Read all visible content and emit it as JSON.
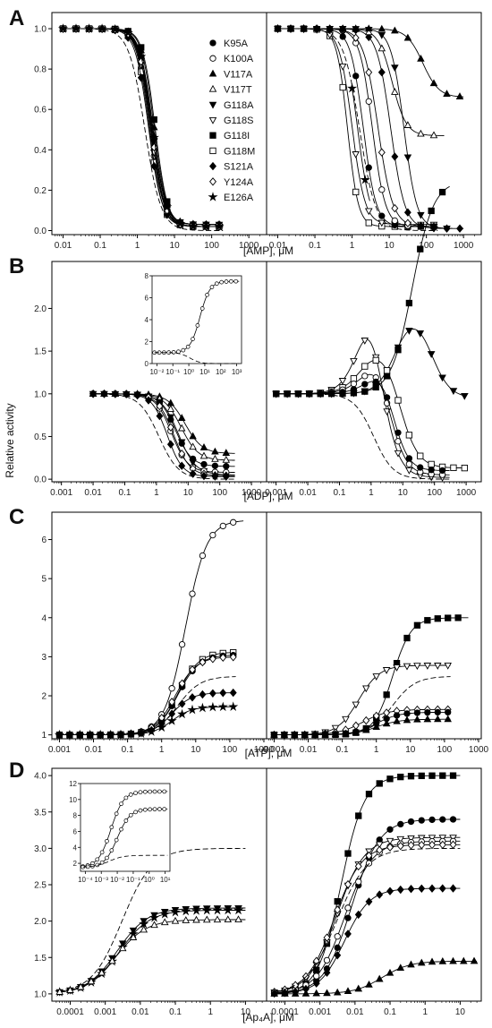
{
  "figure": {
    "ylabel": "Relative activity",
    "panel_letters": [
      "A",
      "B",
      "C",
      "D"
    ],
    "legend": [
      {
        "name": "K95A",
        "marker": "circle-filled"
      },
      {
        "name": "K100A",
        "marker": "circle-open"
      },
      {
        "name": "V117A",
        "marker": "triangle-up-filled"
      },
      {
        "name": "V117T",
        "marker": "triangle-up-open"
      },
      {
        "name": "G118A",
        "marker": "triangle-down-filled"
      },
      {
        "name": "G118S",
        "marker": "triangle-down-open"
      },
      {
        "name": "G118I",
        "marker": "square-filled"
      },
      {
        "name": "G118M",
        "marker": "square-open"
      },
      {
        "name": "S121A",
        "marker": "diamond-filled"
      },
      {
        "name": "Y124A",
        "marker": "diamond-open"
      },
      {
        "name": "E126A",
        "marker": "star"
      }
    ]
  },
  "chart_data": [
    {
      "type": "line",
      "panel": "A",
      "xlabel": "[AMP], μM",
      "xscale": "log",
      "xlim": [
        0.005,
        3000
      ],
      "ylim": [
        -0.02,
        1.08
      ],
      "xticks": [
        "0.01",
        "0.1",
        "1",
        "10",
        "100",
        "1000"
      ],
      "yticks": [
        "0.0",
        "0.2",
        "0.4",
        "0.6",
        "0.8",
        "1.0"
      ],
      "left": {
        "xmax": 200,
        "series": [
          {
            "name": "K95A",
            "marker": "circle-filled",
            "ec50": 2.4,
            "hill": 2.5,
            "bottom": 0.02
          },
          {
            "name": "K100A",
            "marker": "circle-open",
            "ec50": 2.2,
            "hill": 2.5,
            "bottom": 0.03
          },
          {
            "name": "V117A",
            "marker": "triangle-up-filled",
            "ec50": 2.8,
            "hill": 2.6,
            "bottom": 0.03
          },
          {
            "name": "V117T",
            "marker": "triangle-up-open",
            "ec50": 2.6,
            "hill": 2.5,
            "bottom": 0.03
          },
          {
            "name": "G118A",
            "marker": "triangle-down-filled",
            "ec50": 2.5,
            "hill": 2.5,
            "bottom": 0.03
          },
          {
            "name": "G118S",
            "marker": "triangle-down-open",
            "ec50": 2.3,
            "hill": 2.5,
            "bottom": 0.02
          },
          {
            "name": "G118I",
            "marker": "square-filled",
            "ec50": 3.0,
            "hill": 2.6,
            "bottom": 0.02
          },
          {
            "name": "G118M",
            "marker": "square-open",
            "ec50": 2.1,
            "hill": 2.5,
            "bottom": 0.02
          },
          {
            "name": "S121A",
            "marker": "diamond-filled",
            "ec50": 2.0,
            "hill": 2.4,
            "bottom": 0.02
          },
          {
            "name": "Y124A",
            "marker": "diamond-open",
            "ec50": 2.4,
            "hill": 2.5,
            "bottom": 0.02
          },
          {
            "name": "E126A",
            "marker": "star",
            "ec50": 2.6,
            "hill": 2.5,
            "bottom": 0.02
          },
          {
            "name": "",
            "marker": "none",
            "ec50": 1.6,
            "hill": 2.0,
            "bottom": 0.0,
            "dashed": true
          }
        ]
      },
      "right": {
        "xmax": 1000,
        "series": [
          {
            "name": "G118M",
            "marker": "square-open",
            "ec50": 0.75,
            "hill": 3,
            "bottom": 0.02,
            "xmax": 200
          },
          {
            "name": "G118S",
            "marker": "triangle-down-open",
            "ec50": 1.0,
            "hill": 2.5,
            "bottom": 0.03,
            "xmax": 200
          },
          {
            "name": "",
            "marker": "none",
            "ec50": 1.6,
            "hill": 2.0,
            "bottom": 0.0,
            "dashed": true,
            "xmax": 200
          },
          {
            "name": "K95A",
            "marker": "circle-filled",
            "ec50": 2.0,
            "hill": 2.5,
            "bottom": 0.02,
            "xmax": 200
          },
          {
            "name": "K100A",
            "marker": "circle-open",
            "ec50": 3.5,
            "hill": 2.5,
            "bottom": 0.02,
            "xmax": 200
          },
          {
            "name": "Y124A",
            "marker": "diamond-open",
            "ec50": 5.0,
            "hill": 2.2,
            "bottom": 0.02,
            "xmax": 200
          },
          {
            "name": "S121A",
            "marker": "diamond-filled",
            "ec50": 11,
            "hill": 2.3,
            "bottom": 0.01,
            "xmax": 1000
          },
          {
            "name": "G118A",
            "marker": "triangle-down-filled",
            "ec50": 25,
            "hill": 2.5,
            "bottom": 0.01,
            "xmax": 500
          },
          {
            "name": "V117T",
            "marker": "triangle-up-open",
            "ec50": 12,
            "hill": 2.3,
            "bottom": 0.47,
            "xmax": 300
          },
          {
            "name": "V117A",
            "marker": "triangle-up-filled",
            "ec50": 80,
            "hill": 2.0,
            "bottom": 0.66,
            "xmax": 1000
          },
          {
            "name": "E126A",
            "marker": "star",
            "ec50": 1.4,
            "hill": 2.5,
            "bottom": 0.02,
            "xmin": 1,
            "xmax": 3
          }
        ]
      }
    },
    {
      "type": "line",
      "panel": "B",
      "xlabel": "[ADP], μM",
      "xscale": "log",
      "xlim": [
        0.0005,
        3000
      ],
      "ylim": [
        -0.03,
        2.55
      ],
      "xticks": [
        "0.001",
        "0.01",
        "0.1",
        "1",
        "10",
        "100",
        "1000"
      ],
      "yticks": [
        "0.0",
        "0.5",
        "1.0",
        "1.5",
        "2.0"
      ],
      "left": {
        "xmin": 0.01,
        "xmax": 300,
        "series": [
          {
            "name": "V117A",
            "marker": "triangle-up-filled",
            "ec50": 8,
            "hill": 1.6,
            "bottom": 0.3
          },
          {
            "name": "V117T",
            "marker": "triangle-up-open",
            "ec50": 6,
            "hill": 1.6,
            "bottom": 0.22
          },
          {
            "name": "K95A",
            "marker": "circle-filled",
            "ec50": 4,
            "hill": 1.7,
            "bottom": 0.15
          },
          {
            "name": "G118A",
            "marker": "triangle-down-filled",
            "ec50": 5,
            "hill": 1.6,
            "bottom": 0.05
          },
          {
            "name": "K100A",
            "marker": "circle-open",
            "ec50": 3,
            "hill": 1.7,
            "bottom": 0.08
          },
          {
            "name": "Y124A",
            "marker": "diamond-open",
            "ec50": 3.5,
            "hill": 1.7,
            "bottom": 0.04
          },
          {
            "name": "S121A",
            "marker": "diamond-filled",
            "ec50": 2.2,
            "hill": 1.8,
            "bottom": 0.03
          },
          {
            "name": "",
            "marker": "none",
            "ec50": 1.2,
            "hill": 1.4,
            "bottom": 0.0,
            "dashed": true
          }
        ]
      },
      "right": {
        "xmin": 0.001,
        "xmax": 1000,
        "series": [
          {
            "name": "G118I",
            "marker": "square-filled",
            "bell": {
              "a1": 2.5,
              "k1": 20,
              "n1": 1.3,
              "k2": 1000000000,
              "n2": 1
            },
            "xmax": 300
          },
          {
            "name": "G118A",
            "marker": "triangle-down-filled",
            "bell": {
              "a1": 1.0,
              "k1": 6,
              "n1": 1.5,
              "k2": 80,
              "n2": 1.5,
              "b": 0.95
            },
            "xmax": 1000
          },
          {
            "name": "G118S",
            "marker": "triangle-down-open",
            "bell": {
              "a1": 1.5,
              "k1": 0.5,
              "n1": 1.5,
              "k2": 2,
              "n2": 1.6,
              "b": 0.02
            },
            "xmax": 300
          },
          {
            "name": "G118M",
            "marker": "square-open",
            "bell": {
              "a1": 0.6,
              "k1": 0.5,
              "n1": 1.4,
              "k2": 8,
              "n2": 1.5,
              "b": 0.13
            },
            "xmax": 1000
          },
          {
            "name": "K100A",
            "marker": "circle-open",
            "bell": {
              "a1": 0.5,
              "k1": 0.6,
              "n1": 1.4,
              "k2": 4,
              "n2": 1.7,
              "b": 0.05
            },
            "xmax": 300
          },
          {
            "name": "K95A",
            "marker": "circle-filled",
            "bell": {
              "a1": 0.4,
              "k1": 1.0,
              "n1": 1.4,
              "k2": 5,
              "n2": 1.8,
              "b": 0.1
            },
            "xmax": 300
          },
          {
            "name": "",
            "marker": "none",
            "ec50": 1.2,
            "hill": 1.4,
            "bottom": 0.0,
            "dashed": true,
            "xmax": 300
          }
        ]
      },
      "inset": {
        "xticks": [
          "10⁻²",
          "10⁻¹",
          "10⁰",
          "10¹",
          "10²",
          "10³"
        ],
        "yticks": [
          "0",
          "2",
          "4",
          "6",
          "8"
        ],
        "xlim": [
          0.005,
          2000
        ],
        "ylim": [
          0,
          8
        ]
      }
    },
    {
      "type": "line",
      "panel": "C",
      "xlabel": "[ATP], μM",
      "xscale": "log",
      "xlim": [
        0.0006,
        1200
      ],
      "ylim": [
        0.9,
        6.7
      ],
      "xticks": [
        "0.001",
        "0.01",
        "0.1",
        "1",
        "10",
        "100",
        "1000"
      ],
      "yticks": [
        "1",
        "2",
        "3",
        "4",
        "5",
        "6"
      ],
      "left": {
        "xmin": 0.001,
        "xmax": 250,
        "series": [
          {
            "name": "K100A",
            "marker": "circle-open",
            "top": 6.5,
            "ec50": 5,
            "hill": 1.4
          },
          {
            "name": "G118M",
            "marker": "square-open",
            "top": 3.12,
            "ec50": 3,
            "hill": 1.4,
            "xmax": 150
          },
          {
            "name": "K95A",
            "marker": "circle-filled",
            "top": 3.05,
            "ec50": 3,
            "hill": 1.4,
            "xmax": 150
          },
          {
            "name": "Y124A",
            "marker": "diamond-open",
            "top": 3.0,
            "ec50": 2.5,
            "hill": 1.4,
            "xmax": 150
          },
          {
            "name": "",
            "marker": "none",
            "top": 2.5,
            "ec50": 3,
            "hill": 1.3,
            "dashed": true,
            "xmax": 150
          },
          {
            "name": "S121A",
            "marker": "diamond-filled",
            "top": 2.08,
            "ec50": 2,
            "hill": 1.5,
            "xmax": 150
          },
          {
            "name": "E126A",
            "marker": "star",
            "top": 1.72,
            "ec50": 2,
            "hill": 1.5,
            "xmax": 150
          }
        ]
      },
      "right": {
        "xmin": 0.001,
        "xmax": 500,
        "series": [
          {
            "name": "G118I",
            "marker": "square-filled",
            "top": 4.0,
            "ec50": 3,
            "hill": 1.6
          },
          {
            "name": "G118S",
            "marker": "triangle-down-open",
            "top": 2.78,
            "ec50": 0.3,
            "hill": 1.4,
            "xmax": 150
          },
          {
            "name": "",
            "marker": "none",
            "top": 2.5,
            "ec50": 3,
            "hill": 1.3,
            "dashed": true,
            "xmax": 150
          },
          {
            "name": "Y124A",
            "marker": "diamond-open",
            "top": 1.65,
            "ec50": 0.4,
            "hill": 1.2,
            "xmax": 150
          },
          {
            "name": "K95A",
            "marker": "circle-filled",
            "top": 1.58,
            "ec50": 1.0,
            "hill": 1.3,
            "xmax": 150
          },
          {
            "name": "V117A",
            "marker": "triangle-up-filled",
            "top": 1.4,
            "ec50": 1.0,
            "hill": 1.3,
            "xmax": 150
          }
        ]
      }
    },
    {
      "type": "line",
      "panel": "D",
      "xlabel": "[Ap₄A], μM",
      "xscale": "log",
      "xlim": [
        3e-05,
        40
      ],
      "ylim": [
        0.9,
        4.1
      ],
      "xticks": [
        "0.0001",
        "0.001",
        "0.01",
        "0.1",
        "1",
        "10"
      ],
      "yticks": [
        "1.0",
        "1.5",
        "2.0",
        "2.5",
        "3.0",
        "3.5",
        "4.0"
      ],
      "left": {
        "xmin": 5e-05,
        "xmax": 10,
        "series": [
          {
            "name": "",
            "marker": "none",
            "top": 3.0,
            "ec50": 0.003,
            "hill": 1.0,
            "dashed": true
          },
          {
            "name": "G118A",
            "marker": "triangle-down-filled",
            "top": 2.18,
            "ec50": 0.0022,
            "hill": 1.0
          },
          {
            "name": "E126A",
            "marker": "star",
            "top": 2.15,
            "ec50": 0.0025,
            "hill": 1.0
          },
          {
            "name": "V117T",
            "marker": "triangle-up-open",
            "top": 2.02,
            "ec50": 0.002,
            "hill": 1.0
          }
        ]
      },
      "right": {
        "xmin": 5e-05,
        "xmax": 30,
        "series": [
          {
            "name": "G118I",
            "marker": "square-filled",
            "top": 4.0,
            "ec50": 0.004,
            "hill": 1.3,
            "xmax": 10
          },
          {
            "name": "K95A",
            "marker": "circle-filled",
            "top": 3.4,
            "ec50": 0.008,
            "hill": 1.1,
            "xmax": 10
          },
          {
            "name": "G118S",
            "marker": "triangle-down-open",
            "top": 3.15,
            "ec50": 0.003,
            "hill": 1.1,
            "xmax": 10
          },
          {
            "name": "K100A",
            "marker": "circle-open",
            "top": 3.1,
            "ec50": 0.005,
            "hill": 1.1,
            "xmax": 10
          },
          {
            "name": "Y124A",
            "marker": "diamond-open",
            "top": 3.05,
            "ec50": 0.0025,
            "hill": 1.1,
            "xmax": 10
          },
          {
            "name": "",
            "marker": "none",
            "top": 3.0,
            "ec50": 0.003,
            "hill": 1.0,
            "dashed": true,
            "xmax": 10
          },
          {
            "name": "S121A",
            "marker": "diamond-filled",
            "top": 2.45,
            "ec50": 0.005,
            "hill": 1.2,
            "xmax": 10
          },
          {
            "name": "V117A",
            "marker": "triangle-up-filled",
            "top": 1.45,
            "ec50": 0.06,
            "hill": 1.1
          }
        ]
      },
      "inset": {
        "xticks": [
          "10⁻⁴",
          "10⁻³",
          "10⁻²",
          "10⁻¹",
          "10⁰",
          "10¹"
        ],
        "yticks": [
          "2",
          "4",
          "6",
          "8",
          "10",
          "12"
        ],
        "xlim": [
          5e-05,
          20
        ],
        "ylim": [
          1,
          12
        ]
      }
    }
  ]
}
